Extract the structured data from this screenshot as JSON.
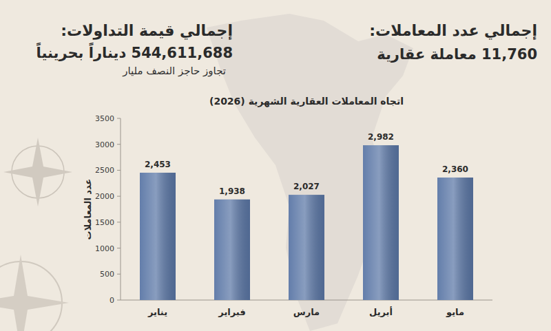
{
  "header": {
    "count_title": "إجمالي عدد المعاملات:",
    "count_value": "11,760 معاملة عقارية",
    "value_title": "إجمالي قيمة التداولات:",
    "value_amount": "544,611,688 ديناراً بحرينياً",
    "value_note": "تجاوز حاجز النصف مليار"
  },
  "chart_data": {
    "type": "bar",
    "title": "اتجاه المعاملات العقارية الشهرية (2026)",
    "y_label": "عدد المعاملات",
    "categories": [
      "يناير",
      "فبراير",
      "مارس",
      "أبريل",
      "مايو"
    ],
    "values": [
      2453,
      1938,
      2027,
      2982,
      2360
    ],
    "value_labels": [
      "2,453",
      "1,938",
      "2,027",
      "2,982",
      "2,360"
    ],
    "color": "#5b77a6",
    "ylim": [
      0,
      3500
    ],
    "yticks": [
      0,
      500,
      1000,
      1500,
      2000,
      2500,
      3000,
      3500
    ],
    "grid": false,
    "data_labels": true
  }
}
